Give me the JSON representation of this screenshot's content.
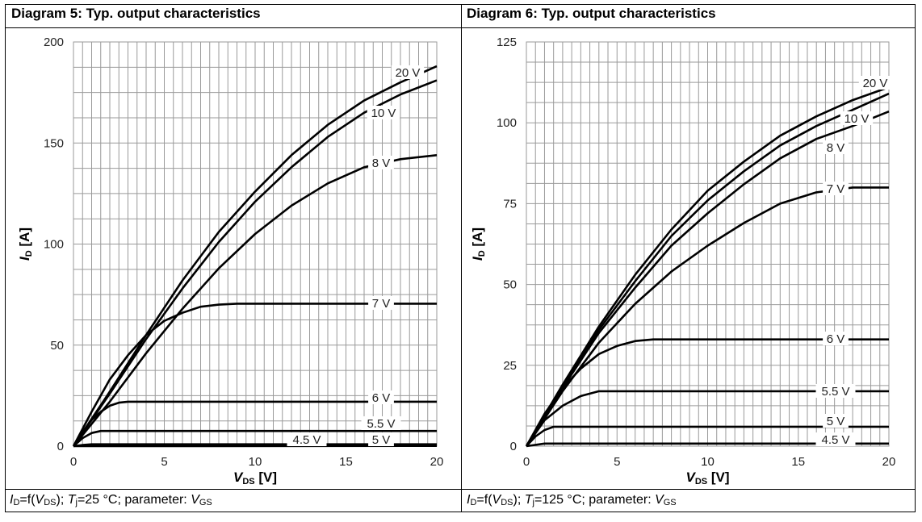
{
  "colors": {
    "curve": "#000000",
    "grid": "#9a9a9a",
    "frame": "#000000"
  },
  "panels": [
    {
      "title": "Diagram 5: Typ. output characteristics",
      "caption": {
        "a": "I",
        "a_sub": "D",
        "b": "=f(",
        "c": "V",
        "c_sub": "DS",
        "d": "); ",
        "e": "T",
        "e_sub": "j",
        "f": "=25 °C; parameter: ",
        "g": "V",
        "g_sub": "GS"
      }
    },
    {
      "title": "Diagram 6: Typ. output characteristics",
      "caption": {
        "a": "I",
        "a_sub": "D",
        "b": "=f(",
        "c": "V",
        "c_sub": "DS",
        "d": "); ",
        "e": "T",
        "e_sub": "j",
        "f": "=125 °C; parameter: ",
        "g": "V",
        "g_sub": "GS"
      }
    }
  ],
  "chart_data": [
    {
      "type": "line",
      "xlabel_main": "V",
      "xlabel_sub": "DS",
      "xlabel_unit": " [V]",
      "ylabel_main": "I",
      "ylabel_sub": "D",
      "ylabel_unit": " [A]",
      "xlim": [
        0,
        20
      ],
      "ylim": [
        0,
        200
      ],
      "xticks": [
        0,
        5,
        10,
        15,
        20
      ],
      "yticks": [
        0,
        50,
        100,
        150,
        200
      ],
      "grid": true,
      "minor_x": 0.5,
      "minor_y": 12.5,
      "series": [
        {
          "name": "20 V",
          "x": [
            0,
            2,
            4,
            6,
            8,
            10,
            12,
            14,
            16,
            18,
            20
          ],
          "y": [
            0,
            27,
            55,
            82,
            106,
            126,
            144,
            159,
            171,
            180,
            188
          ]
        },
        {
          "name": "10 V",
          "x": [
            0,
            2,
            4,
            6,
            8,
            10,
            12,
            14,
            16,
            18,
            20
          ],
          "y": [
            0,
            26,
            53,
            78,
            101,
            121,
            138,
            153,
            165,
            174,
            181
          ]
        },
        {
          "name": "8 V",
          "x": [
            0,
            2,
            4,
            6,
            8,
            10,
            12,
            14,
            16,
            18,
            20
          ],
          "y": [
            0,
            22,
            46,
            68,
            88,
            105,
            119,
            130,
            138,
            142,
            144
          ]
        },
        {
          "name": "7 V",
          "x": [
            0,
            1,
            2,
            3,
            4,
            5,
            6,
            7,
            8,
            9,
            20
          ],
          "y": [
            0,
            17,
            33,
            45,
            55,
            62,
            66,
            69,
            70,
            70.5,
            70.5
          ]
        },
        {
          "name": "6 V",
          "x": [
            0,
            0.5,
            1,
            1.5,
            2,
            2.5,
            3,
            20
          ],
          "y": [
            0,
            7,
            13,
            17,
            20,
            21.5,
            22,
            22
          ]
        },
        {
          "name": "5.5 V",
          "x": [
            0,
            0.5,
            1,
            1.5,
            20
          ],
          "y": [
            0,
            4,
            6.5,
            7.5,
            7.5
          ]
        },
        {
          "name": "5 V",
          "x": [
            0,
            0.5,
            1,
            20
          ],
          "y": [
            0,
            0.6,
            0.9,
            0.9
          ]
        },
        {
          "name": "4.5 V",
          "x": [
            0,
            20
          ],
          "y": [
            0,
            0.1
          ]
        }
      ]
    },
    {
      "type": "line",
      "xlabel_main": "V",
      "xlabel_sub": "DS",
      "xlabel_unit": " [V]",
      "ylabel_main": "I",
      "ylabel_sub": "D",
      "ylabel_unit": " [A]",
      "xlim": [
        0,
        20
      ],
      "ylim": [
        0,
        125
      ],
      "xticks": [
        0,
        5,
        10,
        15,
        20
      ],
      "yticks": [
        0,
        25,
        50,
        75,
        100,
        125
      ],
      "grid": true,
      "minor_x": 0.5,
      "minor_y": 6.25,
      "series": [
        {
          "name": "20 V",
          "x": [
            0,
            2,
            4,
            6,
            8,
            10,
            12,
            14,
            16,
            18,
            20
          ],
          "y": [
            0,
            19,
            37,
            53,
            67,
            79,
            88,
            96,
            102,
            107,
            111
          ]
        },
        {
          "name": "10 V",
          "x": [
            0,
            2,
            4,
            6,
            8,
            10,
            12,
            14,
            16,
            18,
            20
          ],
          "y": [
            0,
            18.5,
            36,
            51,
            65,
            76,
            85,
            93,
            99,
            104,
            109
          ]
        },
        {
          "name": "8 V",
          "x": [
            0,
            2,
            4,
            6,
            8,
            10,
            12,
            14,
            16,
            18,
            20
          ],
          "y": [
            0,
            18,
            35,
            49,
            62,
            72,
            81,
            89,
            95,
            99,
            103.5
          ]
        },
        {
          "name": "7 V",
          "x": [
            0,
            2,
            4,
            6,
            8,
            10,
            12,
            14,
            16,
            18,
            20
          ],
          "y": [
            0,
            17,
            32,
            44,
            54,
            62,
            69,
            75,
            78.5,
            80,
            80
          ]
        },
        {
          "name": "6 V",
          "x": [
            0,
            1,
            2,
            3,
            4,
            5,
            6,
            7,
            20
          ],
          "y": [
            0,
            10,
            18,
            24,
            28.5,
            31,
            32.5,
            33,
            33
          ]
        },
        {
          "name": "5.5 V",
          "x": [
            0,
            1,
            2,
            3,
            4,
            20
          ],
          "y": [
            0,
            8,
            12.5,
            15.5,
            17,
            17
          ]
        },
        {
          "name": "5 V",
          "x": [
            0,
            0.5,
            1,
            1.5,
            20
          ],
          "y": [
            0,
            3,
            5,
            6,
            6
          ]
        },
        {
          "name": "4.5 V",
          "x": [
            0,
            1,
            20
          ],
          "y": [
            0,
            0.8,
            0.8
          ]
        }
      ]
    }
  ]
}
